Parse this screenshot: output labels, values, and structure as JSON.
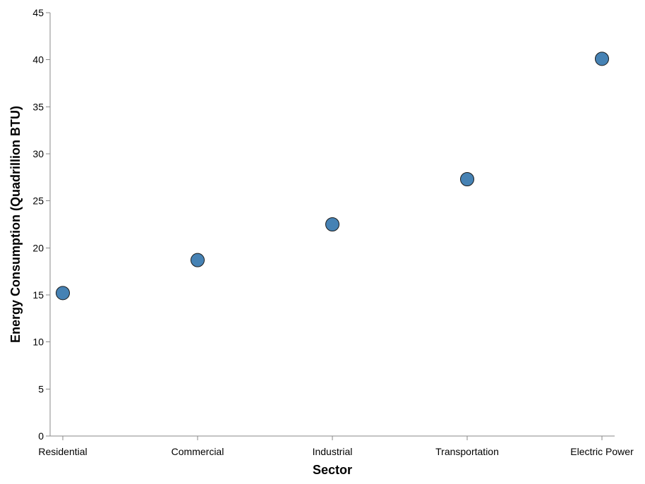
{
  "chart_data": {
    "type": "scatter",
    "categories": [
      "Residential",
      "Commercial",
      "Industrial",
      "Transportation",
      "Electric Power"
    ],
    "values": [
      15.2,
      18.7,
      22.5,
      27.3,
      40.1
    ],
    "xlabel": "Sector",
    "ylabel": "Energy Consumption (Quadrillion BTU)",
    "ylim": [
      0,
      45
    ],
    "yticks": [
      0,
      5,
      10,
      15,
      20,
      25,
      30,
      35,
      40,
      45
    ],
    "grid": false,
    "point_color": "#4682b4"
  }
}
